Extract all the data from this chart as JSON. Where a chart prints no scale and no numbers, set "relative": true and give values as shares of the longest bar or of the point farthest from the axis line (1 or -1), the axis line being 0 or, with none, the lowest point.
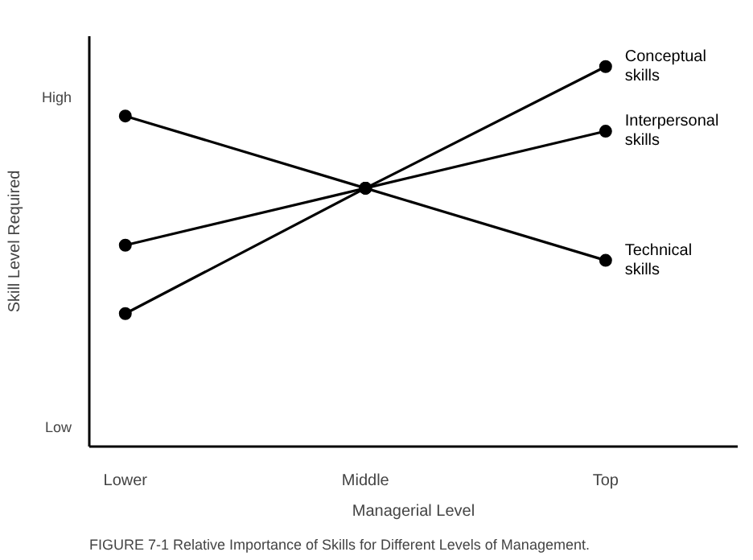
{
  "chart_data": {
    "type": "line",
    "relative": true,
    "xlabel": "Managerial Level",
    "ylabel": "Skill Level Required",
    "categories": [
      "Lower",
      "Middle",
      "Top"
    ],
    "series": [
      {
        "name": "Conceptual skills",
        "color": "#000000",
        "values": [
          0.35,
          0.68,
          1
        ]
      },
      {
        "name": "Interpersonal skills",
        "color": "#000000",
        "values": [
          0.53,
          0.68,
          0.83
        ]
      },
      {
        "name": "Technical skills",
        "color": "#000000",
        "values": [
          0.87,
          0.68,
          0.49
        ]
      }
    ],
    "marker": "circle",
    "line_style": "solid",
    "annotations": [
      "High",
      "Low",
      "FIGURE 7-1   Relative Importance of Skills for Different Levels of Management."
    ]
  }
}
